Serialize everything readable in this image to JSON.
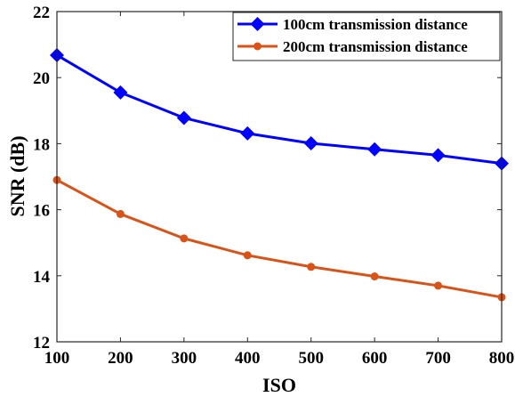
{
  "chart_data": {
    "type": "line",
    "title": "",
    "xlabel": "ISO",
    "ylabel": "SNR (dB)",
    "x": [
      100,
      200,
      300,
      400,
      500,
      600,
      700,
      800
    ],
    "xlim": [
      100,
      800
    ],
    "ylim": [
      12,
      22
    ],
    "xticks": [
      "100",
      "200",
      "300",
      "400",
      "500",
      "600",
      "700",
      "800"
    ],
    "yticks": [
      "12",
      "14",
      "16",
      "18",
      "20",
      "22"
    ],
    "grid": false,
    "legend_position": "top-right",
    "series": [
      {
        "name": "100cm transmission distance",
        "values": [
          20.68,
          19.55,
          18.78,
          18.31,
          18.01,
          17.83,
          17.65,
          17.4
        ],
        "color": "#0000ff",
        "marker": "diamond"
      },
      {
        "name": "200cm transmission distance",
        "values": [
          16.9,
          15.87,
          15.13,
          14.62,
          14.27,
          13.98,
          13.7,
          13.35
        ],
        "color": "#d95319",
        "marker": "circle"
      }
    ]
  }
}
